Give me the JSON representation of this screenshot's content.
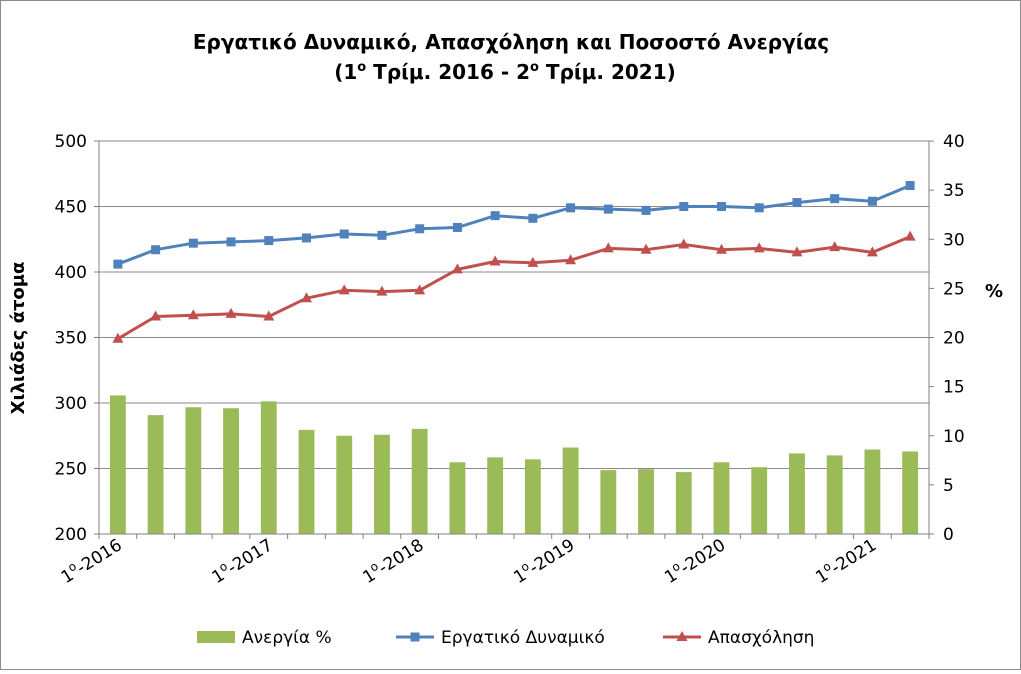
{
  "chart_data": {
    "type": "bar+line",
    "title_line1": "Εργατικό Δυναμικό, Απασχόληση και Ποσοστό Ανεργίας",
    "title_line2": {
      "open": "(1",
      "sup1": "ο",
      "middle": " Τρίμ. 2016 - 2",
      "sup2": "ο",
      "close": " Τρίμ. 2021)"
    },
    "ylabel_left": "Χιλιάδες άτομα",
    "ylabel_right": "%",
    "ylim_left": [
      200,
      500
    ],
    "ylim_right": [
      0,
      40
    ],
    "yticks_left": [
      "200",
      "250",
      "300",
      "350",
      "400",
      "450",
      "500"
    ],
    "yticks_right": [
      "0",
      "5",
      "10",
      "15",
      "20",
      "25",
      "30",
      "35",
      "40"
    ],
    "quarters": 22,
    "x_tick_labels": [
      {
        "index": 0,
        "num": "1",
        "sup": "ο",
        "year": "-2016"
      },
      {
        "index": 4,
        "num": "1",
        "sup": "ο",
        "year": "-2017"
      },
      {
        "index": 8,
        "num": "1",
        "sup": "ο",
        "year": "-2018"
      },
      {
        "index": 12,
        "num": "1",
        "sup": "ο",
        "year": "-2019"
      },
      {
        "index": 16,
        "num": "1",
        "sup": "ο",
        "year": "-2020"
      },
      {
        "index": 20,
        "num": "1",
        "sup": "ο",
        "year": "-2021"
      }
    ],
    "grid": "horizontal",
    "legend_position": "bottom",
    "series": [
      {
        "name": "Ανεργία %",
        "type": "bar",
        "axis": "right",
        "color": "#9BBB59",
        "values": [
          14.1,
          12.1,
          12.9,
          12.8,
          13.5,
          10.6,
          10.0,
          10.1,
          10.7,
          7.3,
          7.8,
          7.6,
          8.8,
          6.5,
          6.6,
          6.3,
          7.3,
          6.8,
          8.2,
          8.0,
          8.6,
          8.4
        ]
      },
      {
        "name": "Εργατικό Δυναμικό",
        "type": "line",
        "marker": "square",
        "axis": "left",
        "color": "#4F81BD",
        "values": [
          406,
          417,
          422,
          423,
          424,
          426,
          429,
          428,
          433,
          434,
          443,
          441,
          449,
          448,
          447,
          450,
          450,
          449,
          453,
          456,
          454,
          466
        ]
      },
      {
        "name": "Απασχόληση",
        "type": "line",
        "marker": "triangle",
        "axis": "left",
        "color": "#C0504D",
        "values": [
          349,
          366,
          367,
          368,
          366,
          380,
          386,
          385,
          386,
          402,
          408,
          407,
          409,
          418,
          417,
          421,
          417,
          418,
          415,
          419,
          415,
          427
        ]
      }
    ]
  }
}
